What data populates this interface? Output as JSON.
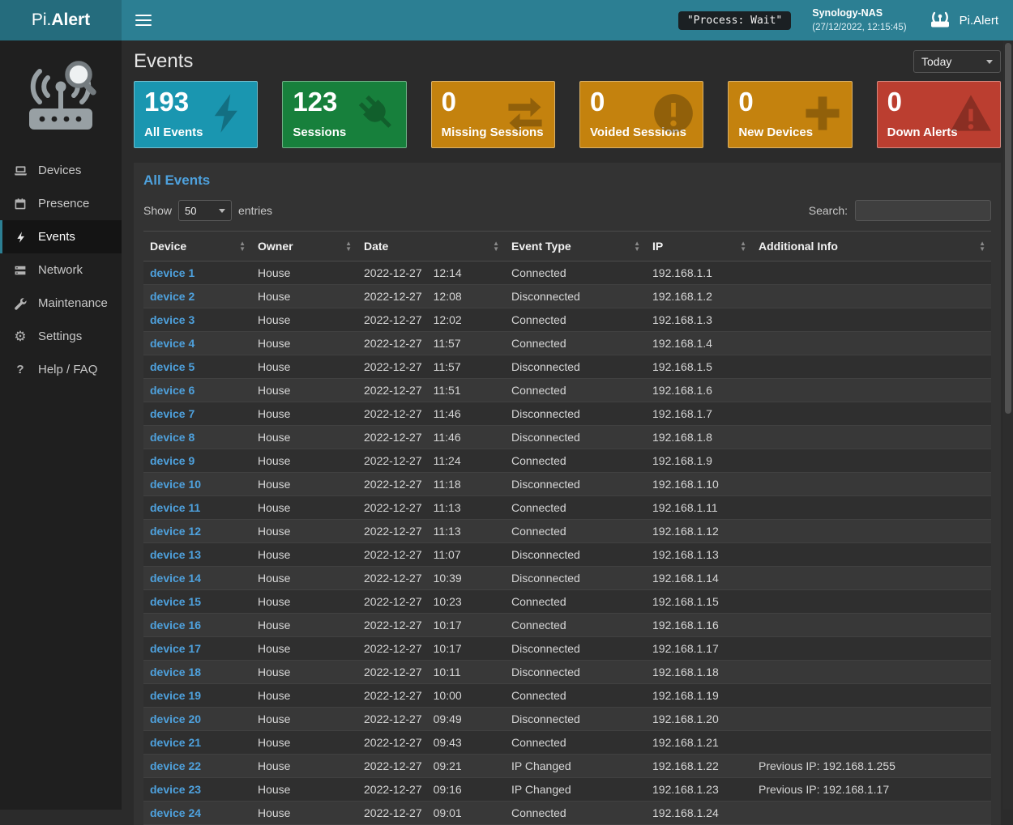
{
  "header": {
    "brand_prefix": "Pi.",
    "brand_suffix": "Alert",
    "process_status": "\"Process: Wait\"",
    "host_name": "Synology-NAS",
    "host_time": "(27/12/2022, 12:15:45)",
    "logo_text": "Pi.Alert"
  },
  "sidebar": {
    "items": [
      {
        "label": "Devices",
        "icon": "laptop-icon",
        "active": false
      },
      {
        "label": "Presence",
        "icon": "calendar-icon",
        "active": false
      },
      {
        "label": "Events",
        "icon": "bolt-icon",
        "active": true
      },
      {
        "label": "Network",
        "icon": "network-icon",
        "active": false
      },
      {
        "label": "Maintenance",
        "icon": "wrench-icon",
        "active": false
      },
      {
        "label": "Settings",
        "icon": "gear-icon",
        "active": false
      },
      {
        "label": "Help / FAQ",
        "icon": "question-icon",
        "active": false
      }
    ]
  },
  "page": {
    "title": "Events",
    "period": "Today"
  },
  "cards": [
    {
      "value": "193",
      "label": "All Events",
      "color": "#1a96b0",
      "icon": "bolt-icon"
    },
    {
      "value": "123",
      "label": "Sessions",
      "color": "#17803c",
      "icon": "plug-icon"
    },
    {
      "value": "0",
      "label": "Missing Sessions",
      "color": "#c4820e",
      "icon": "exchange-icon"
    },
    {
      "value": "0",
      "label": "Voided Sessions",
      "color": "#c4820e",
      "icon": "exclamation-circle-icon"
    },
    {
      "value": "0",
      "label": "New Devices",
      "color": "#c4820e",
      "icon": "plus-icon"
    },
    {
      "value": "0",
      "label": "Down Alerts",
      "color": "#bb3e30",
      "icon": "warning-icon"
    }
  ],
  "panel": {
    "title": "All Events",
    "show_label": "Show",
    "page_length": "50",
    "entries_label": "entries",
    "search_label": "Search:",
    "search_value": ""
  },
  "table": {
    "columns": [
      "Device",
      "Owner",
      "Date",
      "Event Type",
      "IP",
      "Additional Info"
    ],
    "rows": [
      {
        "device": "device 1",
        "owner": "House",
        "date": "2022-12-27",
        "time": "12:14",
        "event": "Connected",
        "ip": "192.168.1.1",
        "info": ""
      },
      {
        "device": "device 2",
        "owner": "House",
        "date": "2022-12-27",
        "time": "12:08",
        "event": "Disconnected",
        "ip": "192.168.1.2",
        "info": ""
      },
      {
        "device": "device 3",
        "owner": "House",
        "date": "2022-12-27",
        "time": "12:02",
        "event": "Connected",
        "ip": "192.168.1.3",
        "info": ""
      },
      {
        "device": "device 4",
        "owner": "House",
        "date": "2022-12-27",
        "time": "11:57",
        "event": "Connected",
        "ip": "192.168.1.4",
        "info": ""
      },
      {
        "device": "device 5",
        "owner": "House",
        "date": "2022-12-27",
        "time": "11:57",
        "event": "Disconnected",
        "ip": "192.168.1.5",
        "info": ""
      },
      {
        "device": "device 6",
        "owner": "House",
        "date": "2022-12-27",
        "time": "11:51",
        "event": "Connected",
        "ip": "192.168.1.6",
        "info": ""
      },
      {
        "device": "device 7",
        "owner": "House",
        "date": "2022-12-27",
        "time": "11:46",
        "event": "Disconnected",
        "ip": "192.168.1.7",
        "info": ""
      },
      {
        "device": "device 8",
        "owner": "House",
        "date": "2022-12-27",
        "time": "11:46",
        "event": "Disconnected",
        "ip": "192.168.1.8",
        "info": ""
      },
      {
        "device": "device 9",
        "owner": "House",
        "date": "2022-12-27",
        "time": "11:24",
        "event": "Connected",
        "ip": "192.168.1.9",
        "info": ""
      },
      {
        "device": "device 10",
        "owner": "House",
        "date": "2022-12-27",
        "time": "11:18",
        "event": "Disconnected",
        "ip": "192.168.1.10",
        "info": ""
      },
      {
        "device": "device 11",
        "owner": "House",
        "date": "2022-12-27",
        "time": "11:13",
        "event": "Connected",
        "ip": "192.168.1.11",
        "info": ""
      },
      {
        "device": "device 12",
        "owner": "House",
        "date": "2022-12-27",
        "time": "11:13",
        "event": "Connected",
        "ip": "192.168.1.12",
        "info": ""
      },
      {
        "device": "device 13",
        "owner": "House",
        "date": "2022-12-27",
        "time": "11:07",
        "event": "Disconnected",
        "ip": "192.168.1.13",
        "info": ""
      },
      {
        "device": "device 14",
        "owner": "House",
        "date": "2022-12-27",
        "time": "10:39",
        "event": "Disconnected",
        "ip": "192.168.1.14",
        "info": ""
      },
      {
        "device": "device 15",
        "owner": "House",
        "date": "2022-12-27",
        "time": "10:23",
        "event": "Connected",
        "ip": "192.168.1.15",
        "info": ""
      },
      {
        "device": "device 16",
        "owner": "House",
        "date": "2022-12-27",
        "time": "10:17",
        "event": "Connected",
        "ip": "192.168.1.16",
        "info": ""
      },
      {
        "device": "device 17",
        "owner": "House",
        "date": "2022-12-27",
        "time": "10:17",
        "event": "Disconnected",
        "ip": "192.168.1.17",
        "info": ""
      },
      {
        "device": "device 18",
        "owner": "House",
        "date": "2022-12-27",
        "time": "10:11",
        "event": "Disconnected",
        "ip": "192.168.1.18",
        "info": ""
      },
      {
        "device": "device 19",
        "owner": "House",
        "date": "2022-12-27",
        "time": "10:00",
        "event": "Connected",
        "ip": "192.168.1.19",
        "info": ""
      },
      {
        "device": "device 20",
        "owner": "House",
        "date": "2022-12-27",
        "time": "09:49",
        "event": "Disconnected",
        "ip": "192.168.1.20",
        "info": ""
      },
      {
        "device": "device 21",
        "owner": "House",
        "date": "2022-12-27",
        "time": "09:43",
        "event": "Connected",
        "ip": "192.168.1.21",
        "info": ""
      },
      {
        "device": "device 22",
        "owner": "House",
        "date": "2022-12-27",
        "time": "09:21",
        "event": "IP Changed",
        "ip": "192.168.1.22",
        "info": "Previous IP: 192.168.1.255"
      },
      {
        "device": "device 23",
        "owner": "House",
        "date": "2022-12-27",
        "time": "09:16",
        "event": "IP Changed",
        "ip": "192.168.1.23",
        "info": "Previous IP: 192.168.1.17"
      },
      {
        "device": "device 24",
        "owner": "House",
        "date": "2022-12-27",
        "time": "09:01",
        "event": "Connected",
        "ip": "192.168.1.24",
        "info": ""
      }
    ]
  }
}
